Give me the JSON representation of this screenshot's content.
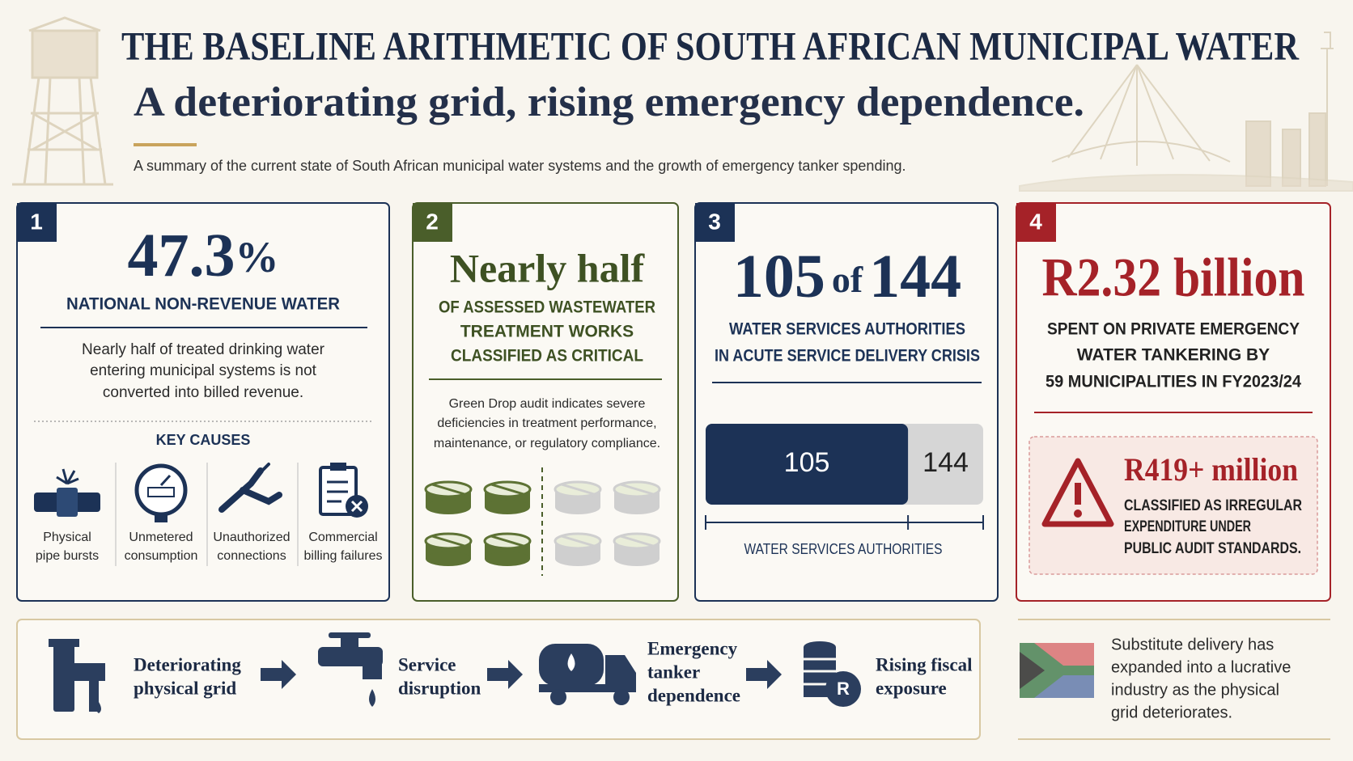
{
  "header": {
    "title": "THE BASELINE ARITHMETIC OF SOUTH AFRICAN MUNICIPAL WATER",
    "subtitle": "A deteriorating grid, rising emergency dependence.",
    "summary": "A summary of the current state of South African municipal water systems and the growth of emergency tanker spending."
  },
  "panels": [
    {
      "number": "1",
      "stat": {
        "value": "47.3",
        "unit": "%"
      },
      "heading": "NATIONAL NON-REVENUE WATER",
      "description": [
        "Nearly half of treated drinking water",
        "entering municipal systems is not",
        "converted into billed revenue."
      ],
      "causes_title": "KEY CAUSES",
      "causes": [
        [
          "Physical",
          "pipe bursts"
        ],
        [
          "Unmetered",
          "consumption"
        ],
        [
          "Unauthorized",
          "connections"
        ],
        [
          "Commercial",
          "billing failures"
        ]
      ]
    },
    {
      "number": "2",
      "stat": "Nearly half",
      "heading": [
        "OF ASSESSED WASTEWATER",
        "TREATMENT WORKS",
        "CLASSIFIED AS CRITICAL"
      ],
      "description": [
        "Green Drop audit indicates severe",
        "deficiencies in treatment performance,",
        "maintenance, or regulatory compliance."
      ]
    },
    {
      "number": "3",
      "stat": {
        "count": 105,
        "of": "of",
        "total": 144
      },
      "heading": [
        "WATER SERVICES AUTHORITIES",
        "IN ACUTE SERVICE DELIVERY CRISIS"
      ],
      "axis_label": "WATER SERVICES AUTHORITIES"
    },
    {
      "number": "4",
      "stat": "R2.32 billion",
      "heading": [
        "SPENT ON PRIVATE EMERGENCY",
        "WATER TANKERING BY",
        "59 MUNICIPALITIES IN FY2023/24"
      ],
      "alert": {
        "stat": "R419+ million",
        "text": [
          "CLASSIFIED AS IRREGULAR",
          "EXPENDITURE UNDER",
          "PUBLIC AUDIT STANDARDS."
        ]
      }
    }
  ],
  "flow": [
    [
      "Deteriorating",
      "physical grid"
    ],
    [
      "Service",
      "disruption"
    ],
    [
      "Emergency",
      "tanker",
      "dependence"
    ],
    [
      "Rising fiscal",
      "exposure"
    ]
  ],
  "note": [
    "Substitute delivery has",
    "expanded into a lucrative",
    "industry as the physical",
    "grid deteriorates."
  ]
}
